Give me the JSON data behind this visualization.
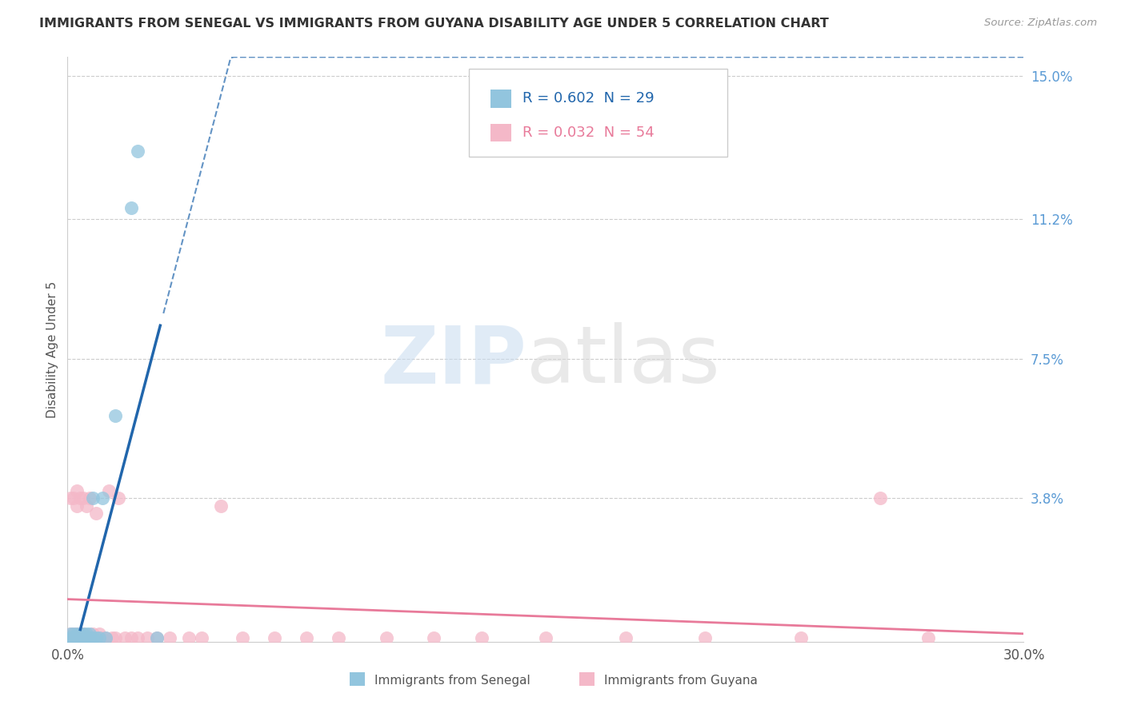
{
  "title": "IMMIGRANTS FROM SENEGAL VS IMMIGRANTS FROM GUYANA DISABILITY AGE UNDER 5 CORRELATION CHART",
  "source": "Source: ZipAtlas.com",
  "ylabel": "Disability Age Under 5",
  "xlim": [
    0,
    0.3
  ],
  "ylim": [
    0,
    0.155
  ],
  "ytick_positions": [
    0.038,
    0.075,
    0.112,
    0.15
  ],
  "ytick_labels": [
    "3.8%",
    "7.5%",
    "11.2%",
    "15.0%"
  ],
  "R_senegal": 0.602,
  "N_senegal": 29,
  "R_guyana": 0.032,
  "N_guyana": 54,
  "color_senegal": "#92c5de",
  "color_guyana": "#f4b8c8",
  "line_color_senegal": "#2166ac",
  "line_color_guyana": "#e87a9a",
  "legend_label_senegal": "Immigrants from Senegal",
  "legend_label_guyana": "Immigrants from Guyana",
  "senegal_x": [
    0.001,
    0.001,
    0.001,
    0.002,
    0.002,
    0.002,
    0.003,
    0.003,
    0.003,
    0.004,
    0.004,
    0.004,
    0.005,
    0.005,
    0.005,
    0.006,
    0.006,
    0.007,
    0.007,
    0.008,
    0.008,
    0.009,
    0.01,
    0.011,
    0.012,
    0.015,
    0.02,
    0.022,
    0.028
  ],
  "senegal_y": [
    0.0,
    0.001,
    0.002,
    0.0,
    0.001,
    0.002,
    0.0,
    0.001,
    0.002,
    0.0,
    0.001,
    0.002,
    0.0,
    0.001,
    0.002,
    0.001,
    0.002,
    0.001,
    0.002,
    0.001,
    0.038,
    0.001,
    0.001,
    0.038,
    0.001,
    0.06,
    0.115,
    0.13,
    0.001
  ],
  "guyana_x": [
    0.001,
    0.001,
    0.001,
    0.002,
    0.002,
    0.002,
    0.003,
    0.003,
    0.003,
    0.003,
    0.004,
    0.004,
    0.004,
    0.005,
    0.005,
    0.005,
    0.006,
    0.006,
    0.007,
    0.007,
    0.008,
    0.008,
    0.009,
    0.009,
    0.01,
    0.01,
    0.011,
    0.012,
    0.013,
    0.014,
    0.015,
    0.016,
    0.018,
    0.02,
    0.022,
    0.025,
    0.028,
    0.032,
    0.038,
    0.042,
    0.048,
    0.055,
    0.065,
    0.075,
    0.085,
    0.1,
    0.115,
    0.13,
    0.15,
    0.175,
    0.2,
    0.23,
    0.255,
    0.27
  ],
  "guyana_y": [
    0.001,
    0.002,
    0.038,
    0.001,
    0.002,
    0.038,
    0.001,
    0.002,
    0.036,
    0.04,
    0.001,
    0.002,
    0.038,
    0.001,
    0.002,
    0.038,
    0.001,
    0.036,
    0.001,
    0.038,
    0.001,
    0.002,
    0.001,
    0.034,
    0.001,
    0.002,
    0.001,
    0.001,
    0.04,
    0.001,
    0.001,
    0.038,
    0.001,
    0.001,
    0.001,
    0.001,
    0.001,
    0.001,
    0.001,
    0.001,
    0.036,
    0.001,
    0.001,
    0.001,
    0.001,
    0.001,
    0.001,
    0.001,
    0.001,
    0.001,
    0.001,
    0.001,
    0.038,
    0.001
  ]
}
